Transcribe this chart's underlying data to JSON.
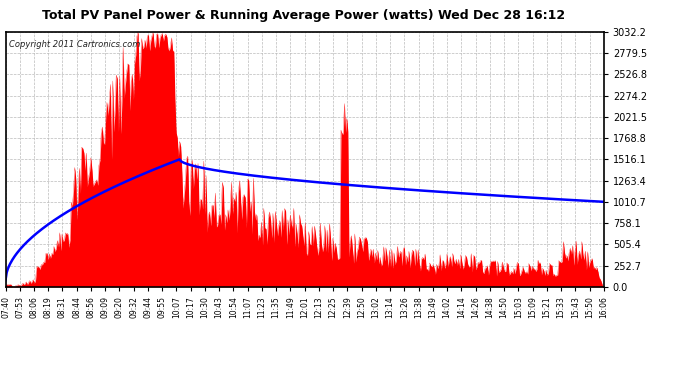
{
  "title": "Total PV Panel Power & Running Average Power (watts) Wed Dec 28 16:12",
  "copyright": "Copyright 2011 Cartronics.com",
  "bg_color": "#ffffff",
  "plot_bg_color": "#ffffff",
  "fill_color": "#ff0000",
  "line_color": "#0000ff",
  "yticks": [
    0.0,
    252.7,
    505.4,
    758.1,
    1010.7,
    1263.4,
    1516.1,
    1768.8,
    2021.5,
    2274.2,
    2526.8,
    2779.5,
    3032.2
  ],
  "ymax": 3032.2,
  "x_labels": [
    "07:40",
    "07:53",
    "08:06",
    "08:19",
    "08:31",
    "08:44",
    "08:56",
    "09:09",
    "09:20",
    "09:32",
    "09:44",
    "09:55",
    "10:07",
    "10:17",
    "10:30",
    "10:43",
    "10:54",
    "11:07",
    "11:23",
    "11:35",
    "11:49",
    "12:01",
    "12:13",
    "12:25",
    "12:39",
    "12:50",
    "13:02",
    "13:14",
    "13:26",
    "13:38",
    "13:49",
    "14:02",
    "14:14",
    "14:26",
    "14:38",
    "14:50",
    "15:03",
    "15:09",
    "15:21",
    "15:33",
    "15:43",
    "15:50",
    "16:06"
  ]
}
